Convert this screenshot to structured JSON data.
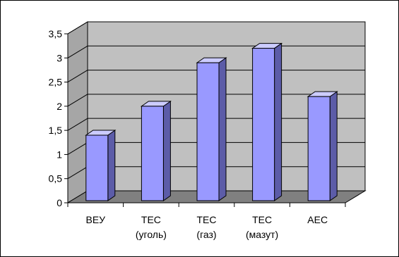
{
  "chart_data": {
    "type": "bar",
    "title": "",
    "xlabel": "",
    "ylabel": "",
    "categories": [
      [
        "ВЕУ"
      ],
      [
        "ТЕС",
        "(уголь)"
      ],
      [
        "ТЕС",
        "(газ)"
      ],
      [
        "ТЕС",
        "(мазут)"
      ],
      [
        "АЕС"
      ]
    ],
    "values": [
      1.4,
      2.0,
      2.9,
      3.2,
      2.2
    ],
    "ylim": [
      0,
      3.5
    ],
    "yticks": [
      "0",
      "0,5",
      "1",
      "1,5",
      "2",
      "2,5",
      "3",
      "3,5"
    ],
    "grid": true,
    "legend": "none",
    "style": "3d-column"
  },
  "colors": {
    "bar_front": "#9999ff",
    "bar_top": "#ccccff",
    "bar_side": "#5c5ca8",
    "wall": "#c0c0c0",
    "floor": "#808080",
    "gridline": "#000000"
  }
}
